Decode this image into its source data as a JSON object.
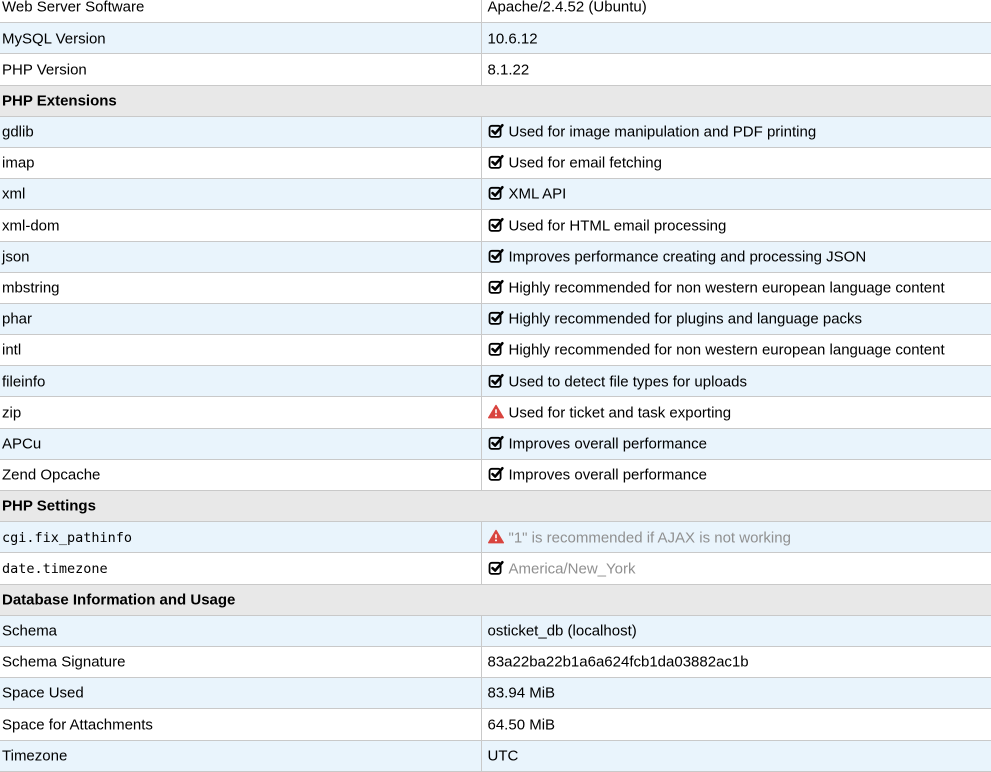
{
  "colors": {
    "row_stripe": "#e9f4fc",
    "section_header_bg": "#e8e8e8",
    "border": "#c9c9c9",
    "check_icon": "#000000",
    "warning_icon": "#d9443f",
    "muted_text": "#909090",
    "text": "#000000",
    "page_bg": "#ffffff"
  },
  "table": {
    "rows": [
      {
        "type": "data",
        "label": "Web Server Software",
        "value": "Apache/2.4.52 (Ubuntu)"
      },
      {
        "type": "data",
        "label": "MySQL Version",
        "value": "10.6.12"
      },
      {
        "type": "data",
        "label": "PHP Version",
        "value": "8.1.22"
      },
      {
        "type": "section",
        "label": "PHP Extensions"
      },
      {
        "type": "data",
        "label": "gdlib",
        "icon": "check-square-icon",
        "value": "Used for image manipulation and PDF printing"
      },
      {
        "type": "data",
        "label": "imap",
        "icon": "check-square-icon",
        "value": "Used for email fetching"
      },
      {
        "type": "data",
        "label": "xml",
        "icon": "check-square-icon",
        "value": "XML API"
      },
      {
        "type": "data",
        "label": "xml-dom",
        "icon": "check-square-icon",
        "value": "Used for HTML email processing"
      },
      {
        "type": "data",
        "label": "json",
        "icon": "check-square-icon",
        "value": "Improves performance creating and processing JSON"
      },
      {
        "type": "data",
        "label": "mbstring",
        "icon": "check-square-icon",
        "value": "Highly recommended for non western european language content"
      },
      {
        "type": "data",
        "label": "phar",
        "icon": "check-square-icon",
        "value": "Highly recommended for plugins and language packs"
      },
      {
        "type": "data",
        "label": "intl",
        "icon": "check-square-icon",
        "value": "Highly recommended for non western european language content"
      },
      {
        "type": "data",
        "label": "fileinfo",
        "icon": "check-square-icon",
        "value": "Used to detect file types for uploads"
      },
      {
        "type": "data",
        "label": "zip",
        "icon": "warning-triangle-icon",
        "value": "Used for ticket and task exporting"
      },
      {
        "type": "data",
        "label": "APCu",
        "icon": "check-square-icon",
        "value": "Improves overall performance"
      },
      {
        "type": "data",
        "label": "Zend Opcache",
        "icon": "check-square-icon",
        "value": "Improves overall performance"
      },
      {
        "type": "section",
        "label": "PHP Settings"
      },
      {
        "type": "data",
        "label": "cgi.fix_pathinfo",
        "label_style": "mono",
        "icon": "warning-triangle-icon",
        "value": "\"1\" is recommended if AJAX is not working",
        "value_style": "muted"
      },
      {
        "type": "data",
        "label": "date.timezone",
        "label_style": "mono",
        "icon": "check-square-icon",
        "value": "America/New_York",
        "value_style": "muted"
      },
      {
        "type": "section",
        "label": "Database Information and Usage"
      },
      {
        "type": "data",
        "label": "Schema",
        "value": "osticket_db (localhost)"
      },
      {
        "type": "data",
        "label": "Schema Signature",
        "value": "83a22ba22b1a6a624fcb1da03882ac1b"
      },
      {
        "type": "data",
        "label": "Space Used",
        "value": "83.94 MiB"
      },
      {
        "type": "data",
        "label": "Space for Attachments",
        "value": "64.50 MiB"
      },
      {
        "type": "data",
        "label": "Timezone",
        "value": "UTC"
      }
    ]
  }
}
